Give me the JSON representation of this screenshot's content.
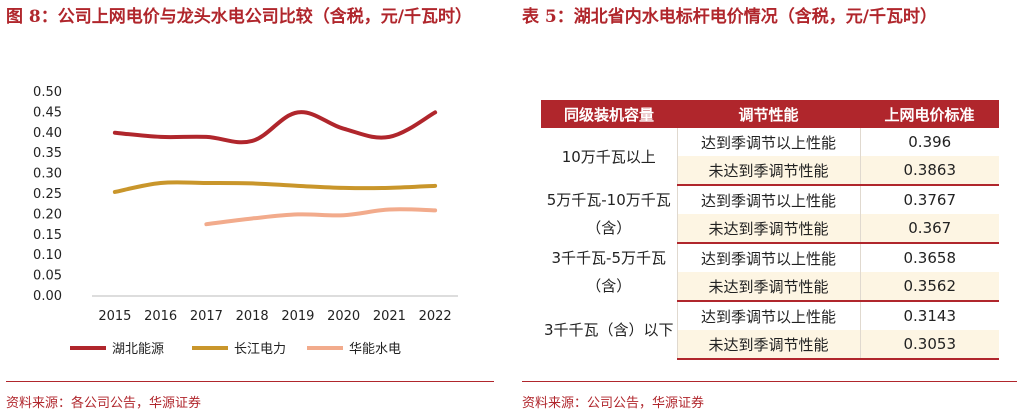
{
  "left": {
    "title": "图 8：公司上网电价与龙头水电公司比较（含税，元/千瓦时）",
    "source": "资料来源：各公司公告，华源证券"
  },
  "right": {
    "title": "表 5：湖北省内水电标杆电价情况（含税，元/千瓦时）",
    "source": "资料来源：公司公告，华源证券",
    "headers": [
      "同级装机容量",
      "调节性能",
      "上网电价标准"
    ],
    "groups": [
      {
        "capacity": "10万千瓦以上",
        "rows": [
          {
            "regulation": "达到季调节以上性能",
            "price": "0.396"
          },
          {
            "regulation": "未达到季调节性能",
            "price": "0.3863"
          }
        ]
      },
      {
        "capacity": "5万千瓦-10万千瓦（含）",
        "rows": [
          {
            "regulation": "达到季调节以上性能",
            "price": "0.3767"
          },
          {
            "regulation": "未达到季调节性能",
            "price": "0.367"
          }
        ]
      },
      {
        "capacity": "3千千瓦-5万千瓦（含）",
        "rows": [
          {
            "regulation": "达到季调节以上性能",
            "price": "0.3658"
          },
          {
            "regulation": "未达到季调节性能",
            "price": "0.3562"
          }
        ]
      },
      {
        "capacity": "3千千瓦（含）以下",
        "rows": [
          {
            "regulation": "达到季调节以上性能",
            "price": "0.3143"
          },
          {
            "regulation": "未达到季调节性能",
            "price": "0.3053"
          }
        ]
      }
    ]
  },
  "chart_data": {
    "type": "line",
    "categories": [
      "2015",
      "2016",
      "2017",
      "2018",
      "2019",
      "2020",
      "2021",
      "2022"
    ],
    "ylim": [
      0,
      0.5
    ],
    "yticks": [
      "0.00",
      "0.05",
      "0.10",
      "0.15",
      "0.20",
      "0.25",
      "0.30",
      "0.35",
      "0.40",
      "0.45",
      "0.50"
    ],
    "grid": false,
    "legend_position": "bottom",
    "series": [
      {
        "name": "湖北能源",
        "color": "#b0262c",
        "values": [
          0.4,
          0.39,
          0.39,
          0.38,
          0.45,
          0.41,
          0.39,
          0.45
        ]
      },
      {
        "name": "长江电力",
        "color": "#c9962b",
        "values": [
          0.255,
          0.277,
          0.277,
          0.276,
          0.27,
          0.265,
          0.265,
          0.27
        ]
      },
      {
        "name": "华能水电",
        "color": "#f2ab8c",
        "values": [
          null,
          null,
          0.176,
          0.19,
          0.2,
          0.198,
          0.212,
          0.21
        ]
      }
    ]
  }
}
